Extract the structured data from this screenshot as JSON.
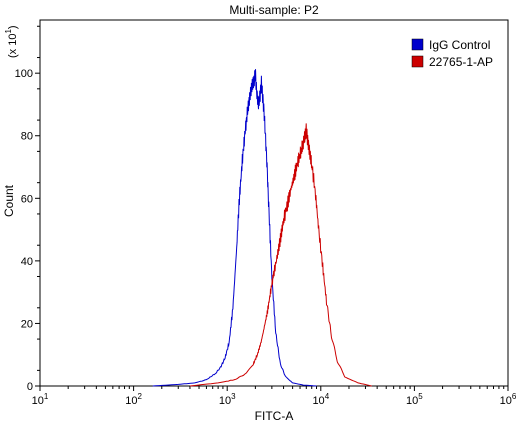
{
  "chart_data": {
    "type": "line",
    "title": "Multi-sample: P2",
    "xlabel": "FITC-A",
    "ylabel": "Count",
    "y_multiplier_label": "(x 10",
    "y_multiplier_exp": "1",
    "y_multiplier_close": ")",
    "x_scale": "log",
    "xlim": [
      10,
      1000000
    ],
    "ylim": [
      0,
      117
    ],
    "x_ticks": [
      {
        "value": 10,
        "base": "10",
        "exp": "1"
      },
      {
        "value": 100,
        "base": "10",
        "exp": "2"
      },
      {
        "value": 1000,
        "base": "10",
        "exp": "3"
      },
      {
        "value": 10000,
        "base": "10",
        "exp": "4"
      },
      {
        "value": 100000,
        "base": "10",
        "exp": "5"
      },
      {
        "value": 1000000,
        "base": "10",
        "exp": "6"
      }
    ],
    "y_ticks": [
      0,
      20,
      40,
      60,
      80,
      100
    ],
    "y_tick_labels": [
      "0",
      "20",
      "40",
      "60",
      "80",
      "100"
    ],
    "legend_position": "top-right",
    "series": [
      {
        "name": "IgG Control",
        "color": "#0000cc",
        "x": [
          160,
          300,
          450,
          600,
          750,
          850,
          950,
          1050,
          1150,
          1250,
          1350,
          1450,
          1550,
          1650,
          1750,
          1850,
          1950,
          2000,
          2050,
          2150,
          2250,
          2320,
          2400,
          2500,
          2650,
          2800,
          3000,
          3300,
          3700,
          4200,
          5000,
          6500,
          9000
        ],
        "values": [
          0,
          0.5,
          1,
          2,
          4,
          6,
          9,
          14,
          25,
          42,
          60,
          72,
          81,
          88,
          93,
          96,
          98,
          100,
          95,
          90,
          93,
          97,
          92,
          86,
          72,
          55,
          35,
          17,
          7,
          3,
          1,
          0.3,
          0
        ]
      },
      {
        "name": "22765-1-AP",
        "color": "#cc0000",
        "x": [
          400,
          800,
          1200,
          1600,
          1900,
          2100,
          2300,
          2500,
          2700,
          2900,
          3100,
          3400,
          3700,
          4000,
          4400,
          4800,
          5200,
          5600,
          6000,
          6400,
          6800,
          7000,
          7200,
          7600,
          8000,
          8800,
          9500,
          10500,
          11500,
          13000,
          15000,
          18000,
          25000,
          35000
        ],
        "values": [
          0,
          1,
          2,
          4,
          7,
          10,
          14,
          19,
          24,
          30,
          35,
          41,
          47,
          53,
          58,
          63,
          67,
          71,
          74,
          77,
          80,
          82,
          79,
          75,
          71,
          61,
          50,
          38,
          27,
          16,
          8,
          3,
          1,
          0
        ]
      }
    ]
  }
}
